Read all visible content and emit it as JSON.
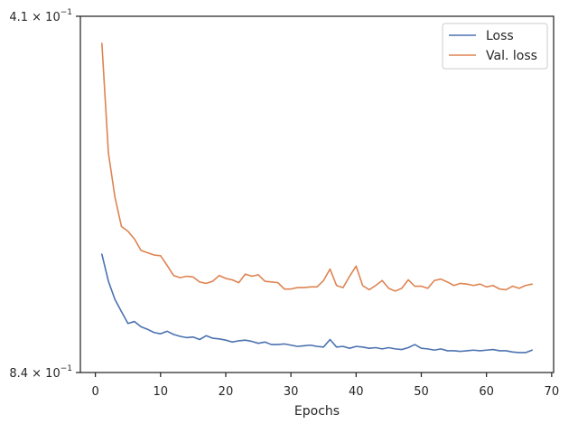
{
  "chart_data": {
    "type": "line",
    "title": "",
    "xlabel": "Epochs",
    "ylabel": "",
    "xlim": [
      -2.3,
      70.3
    ],
    "ylim": [
      0.84,
      0.41
    ],
    "y_scale": "log-like (top value smaller than bottom)",
    "x_ticks": [
      0,
      10,
      20,
      30,
      40,
      50,
      60,
      70
    ],
    "x_tick_labels": [
      "0",
      "10",
      "20",
      "30",
      "40",
      "50",
      "60",
      "70"
    ],
    "y_tick_labels": [
      {
        "mantissa": "4.1",
        "base": "10",
        "exp": "−1"
      },
      {
        "mantissa": "8.4",
        "base": "10",
        "exp": "−1"
      }
    ],
    "legend": {
      "placement": "top-right"
    },
    "x": [
      1,
      2,
      3,
      4,
      5,
      6,
      7,
      8,
      9,
      10,
      11,
      12,
      13,
      14,
      15,
      16,
      17,
      18,
      19,
      20,
      21,
      22,
      23,
      24,
      25,
      26,
      27,
      28,
      29,
      30,
      31,
      32,
      33,
      34,
      35,
      36,
      37,
      38,
      39,
      40,
      41,
      42,
      43,
      44,
      45,
      46,
      47,
      48,
      49,
      50,
      51,
      52,
      53,
      54,
      55,
      56,
      57,
      58,
      59,
      60,
      61,
      62,
      63,
      64,
      65,
      66,
      67
    ],
    "series": [
      {
        "name": "Loss",
        "color": "#4c72b0",
        "values": [
          0.662,
          0.699,
          0.725,
          0.743,
          0.761,
          0.758,
          0.766,
          0.77,
          0.775,
          0.777,
          0.773,
          0.778,
          0.781,
          0.783,
          0.782,
          0.786,
          0.78,
          0.784,
          0.785,
          0.787,
          0.79,
          0.788,
          0.787,
          0.789,
          0.792,
          0.79,
          0.794,
          0.794,
          0.793,
          0.795,
          0.797,
          0.796,
          0.795,
          0.797,
          0.798,
          0.786,
          0.798,
          0.797,
          0.8,
          0.797,
          0.798,
          0.8,
          0.799,
          0.801,
          0.799,
          0.801,
          0.802,
          0.799,
          0.794,
          0.8,
          0.801,
          0.803,
          0.801,
          0.804,
          0.804,
          0.805,
          0.804,
          0.803,
          0.804,
          0.803,
          0.802,
          0.804,
          0.804,
          0.806,
          0.807,
          0.807,
          0.803
        ]
      },
      {
        "name": "Val. loss",
        "color": "#dd8452",
        "values": [
          0.433,
          0.54,
          0.59,
          0.626,
          0.632,
          0.642,
          0.657,
          0.66,
          0.663,
          0.664,
          0.677,
          0.691,
          0.694,
          0.692,
          0.693,
          0.7,
          0.702,
          0.699,
          0.691,
          0.695,
          0.697,
          0.701,
          0.689,
          0.692,
          0.69,
          0.699,
          0.7,
          0.701,
          0.71,
          0.71,
          0.708,
          0.708,
          0.707,
          0.707,
          0.698,
          0.682,
          0.705,
          0.708,
          0.692,
          0.678,
          0.705,
          0.711,
          0.705,
          0.698,
          0.709,
          0.713,
          0.709,
          0.697,
          0.706,
          0.706,
          0.709,
          0.698,
          0.696,
          0.7,
          0.705,
          0.702,
          0.703,
          0.705,
          0.703,
          0.707,
          0.705,
          0.71,
          0.711,
          0.706,
          0.709,
          0.705,
          0.703
        ]
      }
    ]
  }
}
